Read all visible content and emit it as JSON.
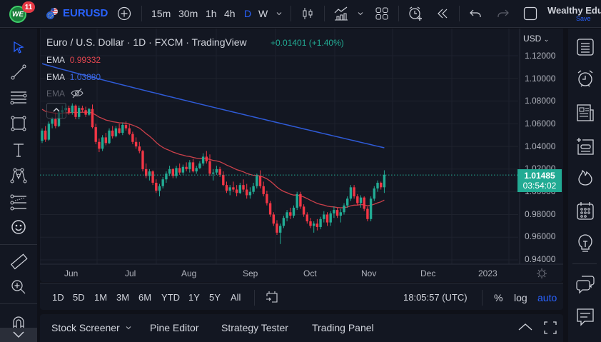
{
  "topbar": {
    "logo_text": "WE",
    "notification_count": "11",
    "symbol": "EURUSD",
    "timeframes": [
      "15m",
      "30m",
      "1h",
      "4h",
      "D",
      "W"
    ],
    "active_timeframe": "D",
    "user_name": "Wealthy Edu",
    "save_label": "Save",
    "icons": [
      "add-symbol-icon",
      "timeframe-dropdown-icon",
      "candles-chart-type-icon",
      "indicators-icon",
      "indicators-dropdown-icon",
      "layouts-icon",
      "alert-icon",
      "replay-icon",
      "undo-icon",
      "redo-icon",
      "fullscreen-box-icon"
    ]
  },
  "legend": {
    "title": "Euro / U.S. Dollar · 1D · FXCM · TradingView",
    "change": "+0.01401 (+1.40%)",
    "ema1_label": "EMA",
    "ema1_value": "0.99332",
    "ema2_label": "EMA",
    "ema2_value": "1.03880",
    "ema3_label": "EMA"
  },
  "price_axis": {
    "currency": "USD",
    "ticks": [
      "1.12000",
      "1.10000",
      "1.08000",
      "1.06000",
      "1.04000",
      "1.02000",
      "1.00000",
      "0.98000",
      "0.96000",
      "0.94000"
    ],
    "last_price": "1.01485",
    "countdown": "03:54:02"
  },
  "time_axis": {
    "ticks": [
      "Jun",
      "Jul",
      "Aug",
      "Sep",
      "Oct",
      "Nov",
      "Dec",
      "2023"
    ]
  },
  "range_bar": {
    "ranges": [
      "1D",
      "5D",
      "1M",
      "3M",
      "6M",
      "YTD",
      "1Y",
      "5Y",
      "All"
    ],
    "clock": "18:05:57 (UTC)",
    "percent_label": "%",
    "log_label": "log",
    "auto_label": "auto"
  },
  "bottom_panel": {
    "tabs": [
      "Stock Screener",
      "Pine Editor",
      "Strategy Tester",
      "Trading Panel"
    ]
  },
  "left_toolbar": {
    "tools": [
      "cursor-icon",
      "trend-line-icon",
      "horizontal-lines-icon",
      "rectangle-icon",
      "text-icon",
      "pattern-icon",
      "fib-icon",
      "emoji-icon",
      "ruler-icon",
      "zoom-in-icon",
      "magnet-icon",
      "more-tools-chevron-icon"
    ]
  },
  "right_toolbar": {
    "tools": [
      "watchlist-icon",
      "alerts-icon",
      "news-icon",
      "add-list-icon",
      "hotlist-icon",
      "calendar-icon",
      "ideas-icon",
      "chats-icon",
      "comments-icon"
    ]
  },
  "colors": {
    "up": "#22ab94",
    "down": "#f23645",
    "ema_fast": "#e0454f",
    "ema_slow": "#2f5bd8",
    "accent": "#2962ff",
    "background": "#131722"
  },
  "chart_data": {
    "type": "candlestick",
    "title": "Euro / U.S. Dollar · 1D · FXCM · TradingView",
    "ylim": [
      0.93,
      1.125
    ],
    "y_ticks": [
      1.12,
      1.1,
      1.08,
      1.06,
      1.04,
      1.02,
      1.0,
      0.98,
      0.96,
      0.94
    ],
    "x_ticks": [
      "Jun",
      "Jul",
      "Aug",
      "Sep",
      "Oct",
      "Nov",
      "Dec",
      "2023"
    ],
    "last_price": 1.01485,
    "ema_fast_last": 0.99332,
    "ema_slow_last": 1.0388,
    "candles": [
      [
        1.045,
        1.056,
        1.043,
        1.054
      ],
      [
        1.054,
        1.058,
        1.044,
        1.046
      ],
      [
        1.046,
        1.062,
        1.045,
        1.06
      ],
      [
        1.06,
        1.066,
        1.056,
        1.064
      ],
      [
        1.064,
        1.07,
        1.056,
        1.058
      ],
      [
        1.058,
        1.072,
        1.057,
        1.07
      ],
      [
        1.07,
        1.076,
        1.065,
        1.072
      ],
      [
        1.072,
        1.078,
        1.07,
        1.074
      ],
      [
        1.074,
        1.076,
        1.068,
        1.07
      ],
      [
        1.07,
        1.078,
        1.068,
        1.076
      ],
      [
        1.076,
        1.077,
        1.064,
        1.066
      ],
      [
        1.066,
        1.076,
        1.064,
        1.074
      ],
      [
        1.074,
        1.076,
        1.07,
        1.072
      ],
      [
        1.072,
        1.075,
        1.066,
        1.068
      ],
      [
        1.068,
        1.074,
        1.067,
        1.073
      ],
      [
        1.073,
        1.077,
        1.056,
        1.057
      ],
      [
        1.057,
        1.06,
        1.042,
        1.044
      ],
      [
        1.044,
        1.047,
        1.035,
        1.038
      ],
      [
        1.038,
        1.05,
        1.036,
        1.048
      ],
      [
        1.048,
        1.052,
        1.041,
        1.043
      ],
      [
        1.043,
        1.056,
        1.042,
        1.054
      ],
      [
        1.054,
        1.058,
        1.047,
        1.049
      ],
      [
        1.049,
        1.058,
        1.048,
        1.056
      ],
      [
        1.056,
        1.06,
        1.051,
        1.052
      ],
      [
        1.052,
        1.061,
        1.05,
        1.059
      ],
      [
        1.059,
        1.062,
        1.054,
        1.056
      ],
      [
        1.056,
        1.06,
        1.05,
        1.051
      ],
      [
        1.051,
        1.053,
        1.042,
        1.044
      ],
      [
        1.044,
        1.048,
        1.038,
        1.04
      ],
      [
        1.04,
        1.044,
        1.034,
        1.036
      ],
      [
        1.036,
        1.037,
        1.018,
        1.02
      ],
      [
        1.02,
        1.025,
        1.012,
        1.014
      ],
      [
        1.014,
        1.02,
        1.01,
        1.018
      ],
      [
        1.018,
        1.019,
        1.006,
        1.008
      ],
      [
        1.008,
        1.011,
        0.999,
        1.001
      ],
      [
        1.001,
        1.007,
        0.996,
        1.005
      ],
      [
        1.005,
        1.013,
        1.003,
        1.011
      ],
      [
        1.011,
        1.018,
        1.008,
        1.016
      ],
      [
        1.016,
        1.023,
        1.014,
        1.02
      ],
      [
        1.02,
        1.021,
        1.012,
        1.014
      ],
      [
        1.014,
        1.023,
        1.012,
        1.021
      ],
      [
        1.021,
        1.025,
        1.015,
        1.017
      ],
      [
        1.017,
        1.024,
        1.015,
        1.022
      ],
      [
        1.022,
        1.026,
        1.018,
        1.02
      ],
      [
        1.02,
        1.028,
        1.017,
        1.026
      ],
      [
        1.026,
        1.029,
        1.017,
        1.018
      ],
      [
        1.018,
        1.023,
        1.016,
        1.021
      ],
      [
        1.021,
        1.027,
        1.02,
        1.025
      ],
      [
        1.025,
        1.034,
        1.023,
        1.031
      ],
      [
        1.031,
        1.036,
        1.025,
        1.027
      ],
      [
        1.027,
        1.033,
        1.014,
        1.016
      ],
      [
        1.016,
        1.02,
        1.01,
        1.017
      ],
      [
        1.017,
        1.023,
        1.015,
        1.02
      ],
      [
        1.02,
        1.022,
        1.013,
        1.015
      ],
      [
        1.015,
        1.018,
        1.005,
        1.006
      ],
      [
        1.006,
        1.009,
        0.999,
        1.001
      ],
      [
        1.001,
        1.006,
        0.997,
        1.004
      ],
      [
        1.004,
        1.009,
        1.0,
        1.002
      ],
      [
        1.002,
        1.006,
        0.996,
        0.999
      ],
      [
        0.999,
        1.008,
        0.998,
        1.006
      ],
      [
        1.006,
        1.011,
        1.0,
        1.002
      ],
      [
        1.002,
        1.007,
        0.994,
        0.997
      ],
      [
        0.997,
        1.004,
        0.994,
        1.0
      ],
      [
        1.0,
        1.008,
        0.998,
        1.005
      ],
      [
        1.005,
        1.016,
        1.003,
        1.014
      ],
      [
        1.014,
        1.019,
        1.003,
        1.005
      ],
      [
        1.005,
        1.009,
        0.996,
        0.998
      ],
      [
        0.998,
        1.001,
        0.988,
        0.99
      ],
      [
        0.99,
        0.992,
        0.978,
        0.98
      ],
      [
        0.98,
        0.982,
        0.97,
        0.972
      ],
      [
        0.972,
        0.975,
        0.962,
        0.964
      ],
      [
        0.964,
        0.972,
        0.954,
        0.97
      ],
      [
        0.97,
        0.979,
        0.968,
        0.977
      ],
      [
        0.977,
        0.984,
        0.974,
        0.982
      ],
      [
        0.982,
        0.986,
        0.976,
        0.979
      ],
      [
        0.979,
        0.988,
        0.977,
        0.986
      ],
      [
        0.986,
        1.0,
        0.984,
        0.998
      ],
      [
        0.998,
        1.0,
        0.985,
        0.987
      ],
      [
        0.987,
        0.989,
        0.978,
        0.98
      ],
      [
        0.98,
        0.982,
        0.972,
        0.974
      ],
      [
        0.974,
        0.977,
        0.968,
        0.97
      ],
      [
        0.97,
        0.974,
        0.964,
        0.972
      ],
      [
        0.972,
        0.976,
        0.966,
        0.969
      ],
      [
        0.969,
        0.978,
        0.967,
        0.976
      ],
      [
        0.976,
        0.983,
        0.973,
        0.98
      ],
      [
        0.98,
        0.982,
        0.97,
        0.973
      ],
      [
        0.973,
        0.983,
        0.97,
        0.981
      ],
      [
        0.981,
        0.987,
        0.977,
        0.984
      ],
      [
        0.984,
        0.986,
        0.977,
        0.979
      ],
      [
        0.979,
        0.985,
        0.973,
        0.982
      ],
      [
        0.982,
        0.99,
        0.98,
        0.988
      ],
      [
        0.988,
        0.996,
        0.986,
        0.994
      ],
      [
        0.994,
        1.006,
        0.992,
        1.004
      ],
      [
        1.004,
        1.006,
        0.994,
        0.996
      ],
      [
        0.996,
        0.998,
        0.988,
        0.99
      ],
      [
        0.99,
        0.997,
        0.986,
        0.995
      ],
      [
        0.995,
        0.996,
        0.983,
        0.985
      ],
      [
        0.985,
        0.987,
        0.974,
        0.976
      ],
      [
        0.976,
        0.996,
        0.974,
        0.994
      ],
      [
        0.994,
        1.005,
        0.992,
        1.003
      ],
      [
        1.003,
        1.01,
        1.0,
        1.008
      ],
      [
        1.008,
        1.009,
        1.002,
        1.004
      ],
      [
        1.004,
        1.019,
        0.999,
        1.015
      ]
    ]
  }
}
